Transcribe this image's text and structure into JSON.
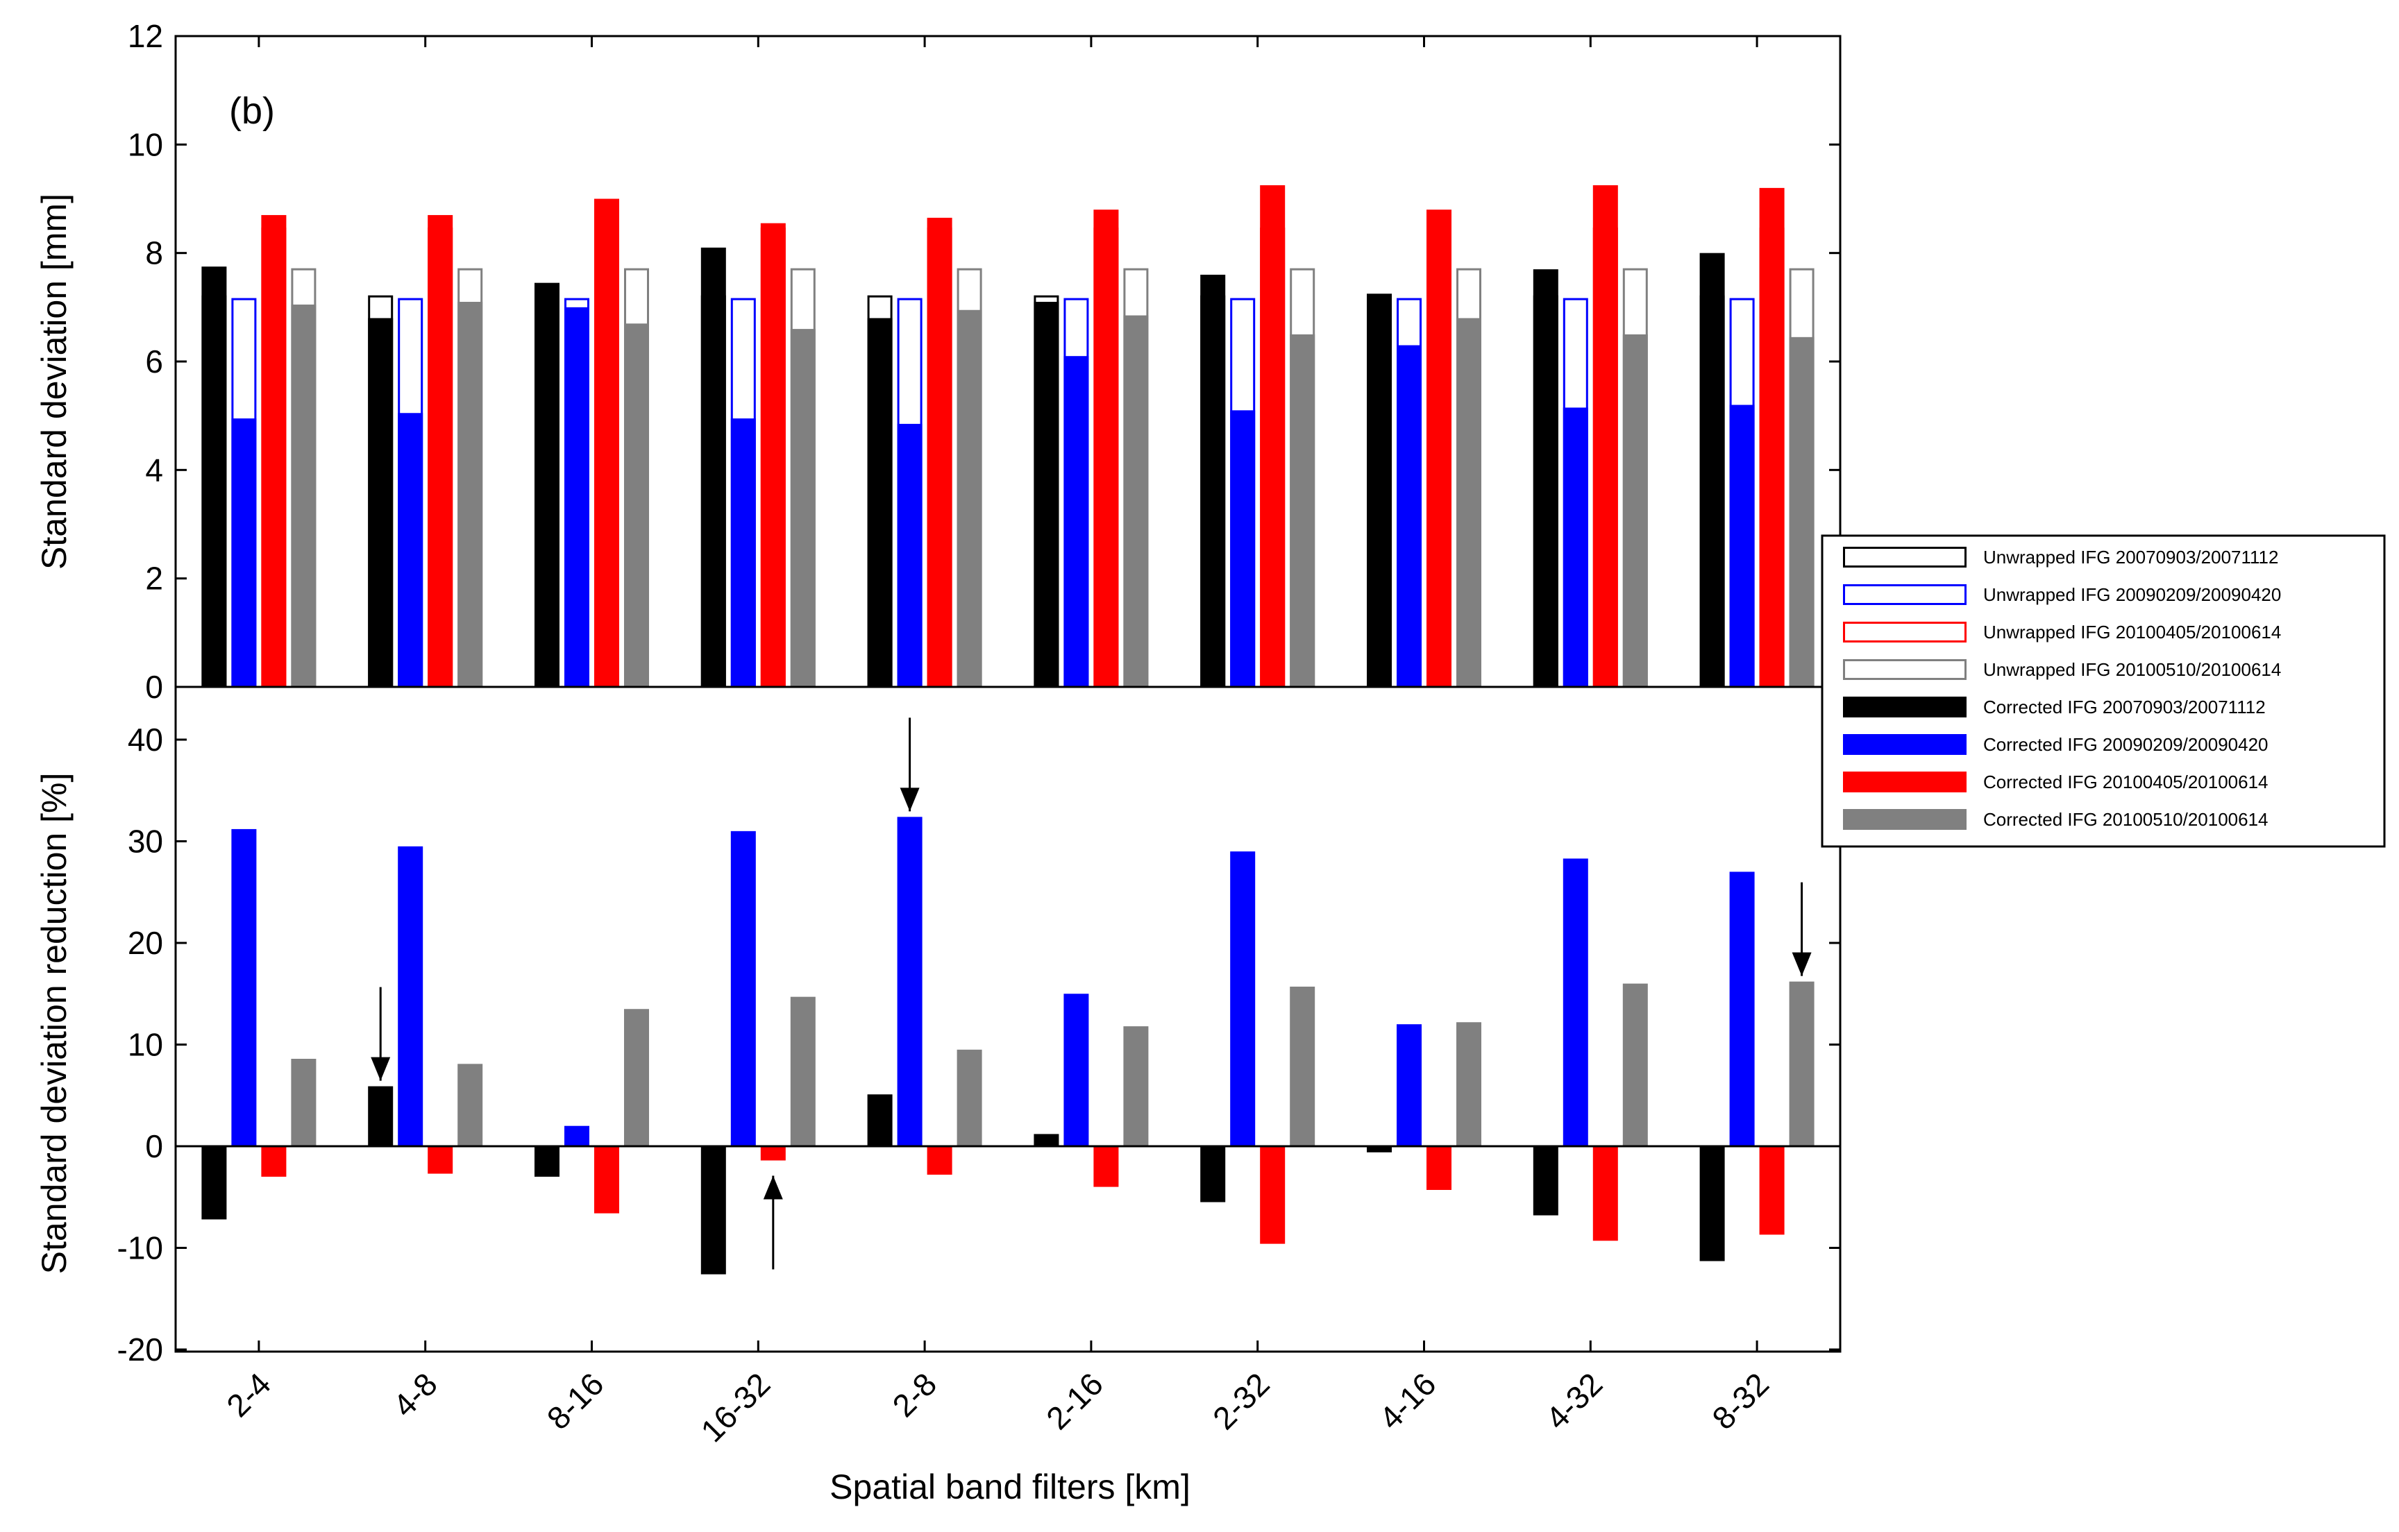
{
  "chart_data": [
    {
      "type": "bar",
      "panel_label": "(b)",
      "ylabel": "Standard deviation [mm]",
      "ylim": [
        0,
        12
      ],
      "yticks": [
        "0",
        "2",
        "4",
        "6",
        "8",
        "10",
        "12"
      ],
      "categories": [
        "2-4",
        "4-8",
        "8-16",
        "16-32",
        "2-8",
        "2-16",
        "2-32",
        "4-16",
        "4-32",
        "8-32"
      ],
      "unwrapped_series": [
        {
          "name": "Unwrapped IFG 20070903/20071112",
          "color": "#000000",
          "values": [
            7.2,
            7.2,
            7.2,
            7.2,
            7.2,
            7.2,
            7.2,
            7.2,
            7.2,
            7.2
          ]
        },
        {
          "name": "Unwrapped IFG 20090209/20090420",
          "color": "#0000ff",
          "values": [
            7.15,
            7.15,
            7.15,
            7.15,
            7.15,
            7.15,
            7.15,
            7.15,
            7.15,
            7.15
          ]
        },
        {
          "name": "Unwrapped IFG 20100405/20100614",
          "color": "#ff0000",
          "values": [
            8.45,
            8.45,
            8.45,
            8.45,
            8.45,
            8.45,
            8.45,
            8.45,
            8.45,
            8.45
          ]
        },
        {
          "name": "Unwrapped IFG 20100510/20100614",
          "color": "#808080",
          "values": [
            7.7,
            7.7,
            7.7,
            7.7,
            7.7,
            7.7,
            7.7,
            7.7,
            7.7,
            7.7
          ]
        }
      ],
      "corrected_series": [
        {
          "name": "Corrected IFG 20070903/20071112",
          "color": "#000000",
          "values": [
            7.75,
            6.8,
            7.45,
            8.1,
            6.8,
            7.1,
            7.6,
            7.25,
            7.7,
            8.0
          ]
        },
        {
          "name": "Corrected IFG 20090209/20090420",
          "color": "#0000ff",
          "values": [
            4.95,
            5.05,
            7.0,
            4.95,
            4.85,
            6.1,
            5.1,
            6.3,
            5.15,
            5.2
          ]
        },
        {
          "name": "Corrected IFG 20100405/20100614",
          "color": "#ff0000",
          "values": [
            8.7,
            8.7,
            9.0,
            8.55,
            8.65,
            8.8,
            9.25,
            8.8,
            9.25,
            9.2
          ]
        },
        {
          "name": "Corrected IFG 20100510/20100614",
          "color": "#808080",
          "values": [
            7.05,
            7.1,
            6.7,
            6.6,
            6.95,
            6.85,
            6.5,
            6.8,
            6.5,
            6.45
          ]
        }
      ]
    },
    {
      "type": "bar",
      "ylabel": "Standard deviation reduction [%]",
      "xlabel": "Spatial band filters [km]",
      "ylim": [
        -20,
        45
      ],
      "yticks": [
        "-20",
        "-10",
        "0",
        "10",
        "20",
        "30",
        "40"
      ],
      "categories": [
        "2-4",
        "4-8",
        "8-16",
        "16-32",
        "2-8",
        "2-16",
        "2-32",
        "4-16",
        "4-32",
        "8-32"
      ],
      "series": [
        {
          "name": "Corrected IFG 20070903/20071112",
          "color": "#000000",
          "values": [
            -7.2,
            5.9,
            -3.0,
            -12.6,
            5.1,
            1.2,
            -5.5,
            -0.6,
            -6.8,
            -11.3
          ]
        },
        {
          "name": "Corrected IFG 20090209/20090420",
          "color": "#0000ff",
          "values": [
            31.2,
            29.5,
            2.0,
            31.0,
            32.4,
            15.0,
            29.0,
            12.0,
            28.3,
            27.0
          ]
        },
        {
          "name": "Corrected IFG 20100405/20100614",
          "color": "#ff0000",
          "values": [
            -3.0,
            -2.7,
            -6.6,
            -1.4,
            -2.8,
            -4.0,
            -9.6,
            -4.3,
            -9.3,
            -8.7
          ]
        },
        {
          "name": "Corrected IFG 20100510/20100614",
          "color": "#808080",
          "values": [
            8.6,
            8.1,
            13.5,
            14.7,
            9.5,
            11.8,
            15.7,
            12.2,
            16.0,
            16.2
          ]
        }
      ],
      "annotations": [
        {
          "type": "arrow-down",
          "category": "4-8",
          "series": 0
        },
        {
          "type": "arrow-down",
          "category": "2-8",
          "series": 1
        },
        {
          "type": "arrow-down",
          "category": "8-32",
          "series": 3
        },
        {
          "type": "arrow-up",
          "category": "16-32",
          "series": 2
        }
      ]
    }
  ],
  "legend": {
    "placement": "right",
    "entries": [
      {
        "label": "Unwrapped IFG 20070903/20071112",
        "color": "#000000",
        "style": "outline"
      },
      {
        "label": "Unwrapped IFG 20090209/20090420",
        "color": "#0000ff",
        "style": "outline"
      },
      {
        "label": "Unwrapped IFG 20100405/20100614",
        "color": "#ff0000",
        "style": "outline"
      },
      {
        "label": "Unwrapped IFG 20100510/20100614",
        "color": "#808080",
        "style": "outline"
      },
      {
        "label": "Corrected IFG 20070903/20071112",
        "color": "#000000",
        "style": "filled"
      },
      {
        "label": "Corrected IFG 20090209/20090420",
        "color": "#0000ff",
        "style": "filled"
      },
      {
        "label": "Corrected IFG 20100405/20100614",
        "color": "#ff0000",
        "style": "filled"
      },
      {
        "label": "Corrected IFG 20100510/20100614",
        "color": "#808080",
        "style": "filled"
      }
    ]
  }
}
